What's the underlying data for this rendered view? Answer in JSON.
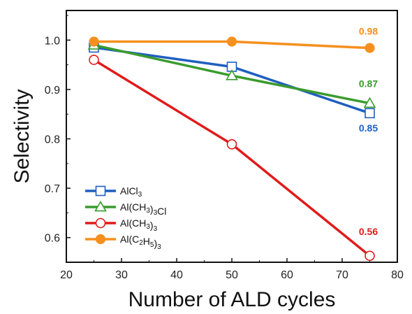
{
  "chart_data": {
    "type": "line",
    "xlabel": "Number of ALD cycles",
    "ylabel": "Selectivity",
    "xlim": [
      20,
      80
    ],
    "ylim": [
      0.55,
      1.06
    ],
    "xticks": [
      20,
      30,
      40,
      50,
      60,
      70,
      80
    ],
    "yticks": [
      0.6,
      0.7,
      0.8,
      0.9,
      1.0
    ],
    "xtick_labels": [
      "20",
      "30",
      "40",
      "50",
      "60",
      "70",
      "80"
    ],
    "ytick_labels": [
      "0.6",
      "0.7",
      "0.8",
      "0.9",
      "1.0"
    ],
    "grid": false,
    "legend_position": "lower-left",
    "x": [
      25,
      50,
      75
    ],
    "series": [
      {
        "name": "AlCl3",
        "values": [
          0.985,
          0.946,
          0.852
        ],
        "color": "#1f5fbf",
        "marker": "square-open",
        "end_label": "0.85"
      },
      {
        "name": "Al(CH3)3Cl",
        "values": [
          0.99,
          0.928,
          0.872
        ],
        "color": "#3a9b2e",
        "marker": "triangle-open",
        "end_label": "0.87"
      },
      {
        "name": "Al(CH3)3",
        "values": [
          0.96,
          0.789,
          0.563
        ],
        "color": "#e01b1b",
        "marker": "circle-open",
        "end_label": "0.56"
      },
      {
        "name": "Al(C2H5)3",
        "values": [
          0.997,
          0.997,
          0.984
        ],
        "color": "#f5901e",
        "marker": "circle-filled",
        "end_label": "0.98"
      }
    ]
  },
  "legend_display": [
    [
      {
        "t": "AlCl",
        "s": false
      },
      {
        "t": "3",
        "s": true
      }
    ],
    [
      {
        "t": "Al(CH",
        "s": false
      },
      {
        "t": "3",
        "s": true
      },
      {
        "t": ")",
        "s": false
      },
      {
        "t": "3",
        "s": true
      },
      {
        "t": "Cl",
        "s": false
      }
    ],
    [
      {
        "t": "Al(CH",
        "s": false
      },
      {
        "t": "3",
        "s": true
      },
      {
        "t": ")",
        "s": false
      },
      {
        "t": "3",
        "s": true
      }
    ],
    [
      {
        "t": "Al(C",
        "s": false
      },
      {
        "t": "2",
        "s": true
      },
      {
        "t": "H",
        "s": false
      },
      {
        "t": "5",
        "s": true
      },
      {
        "t": ")",
        "s": false
      },
      {
        "t": "3",
        "s": true
      }
    ]
  ]
}
